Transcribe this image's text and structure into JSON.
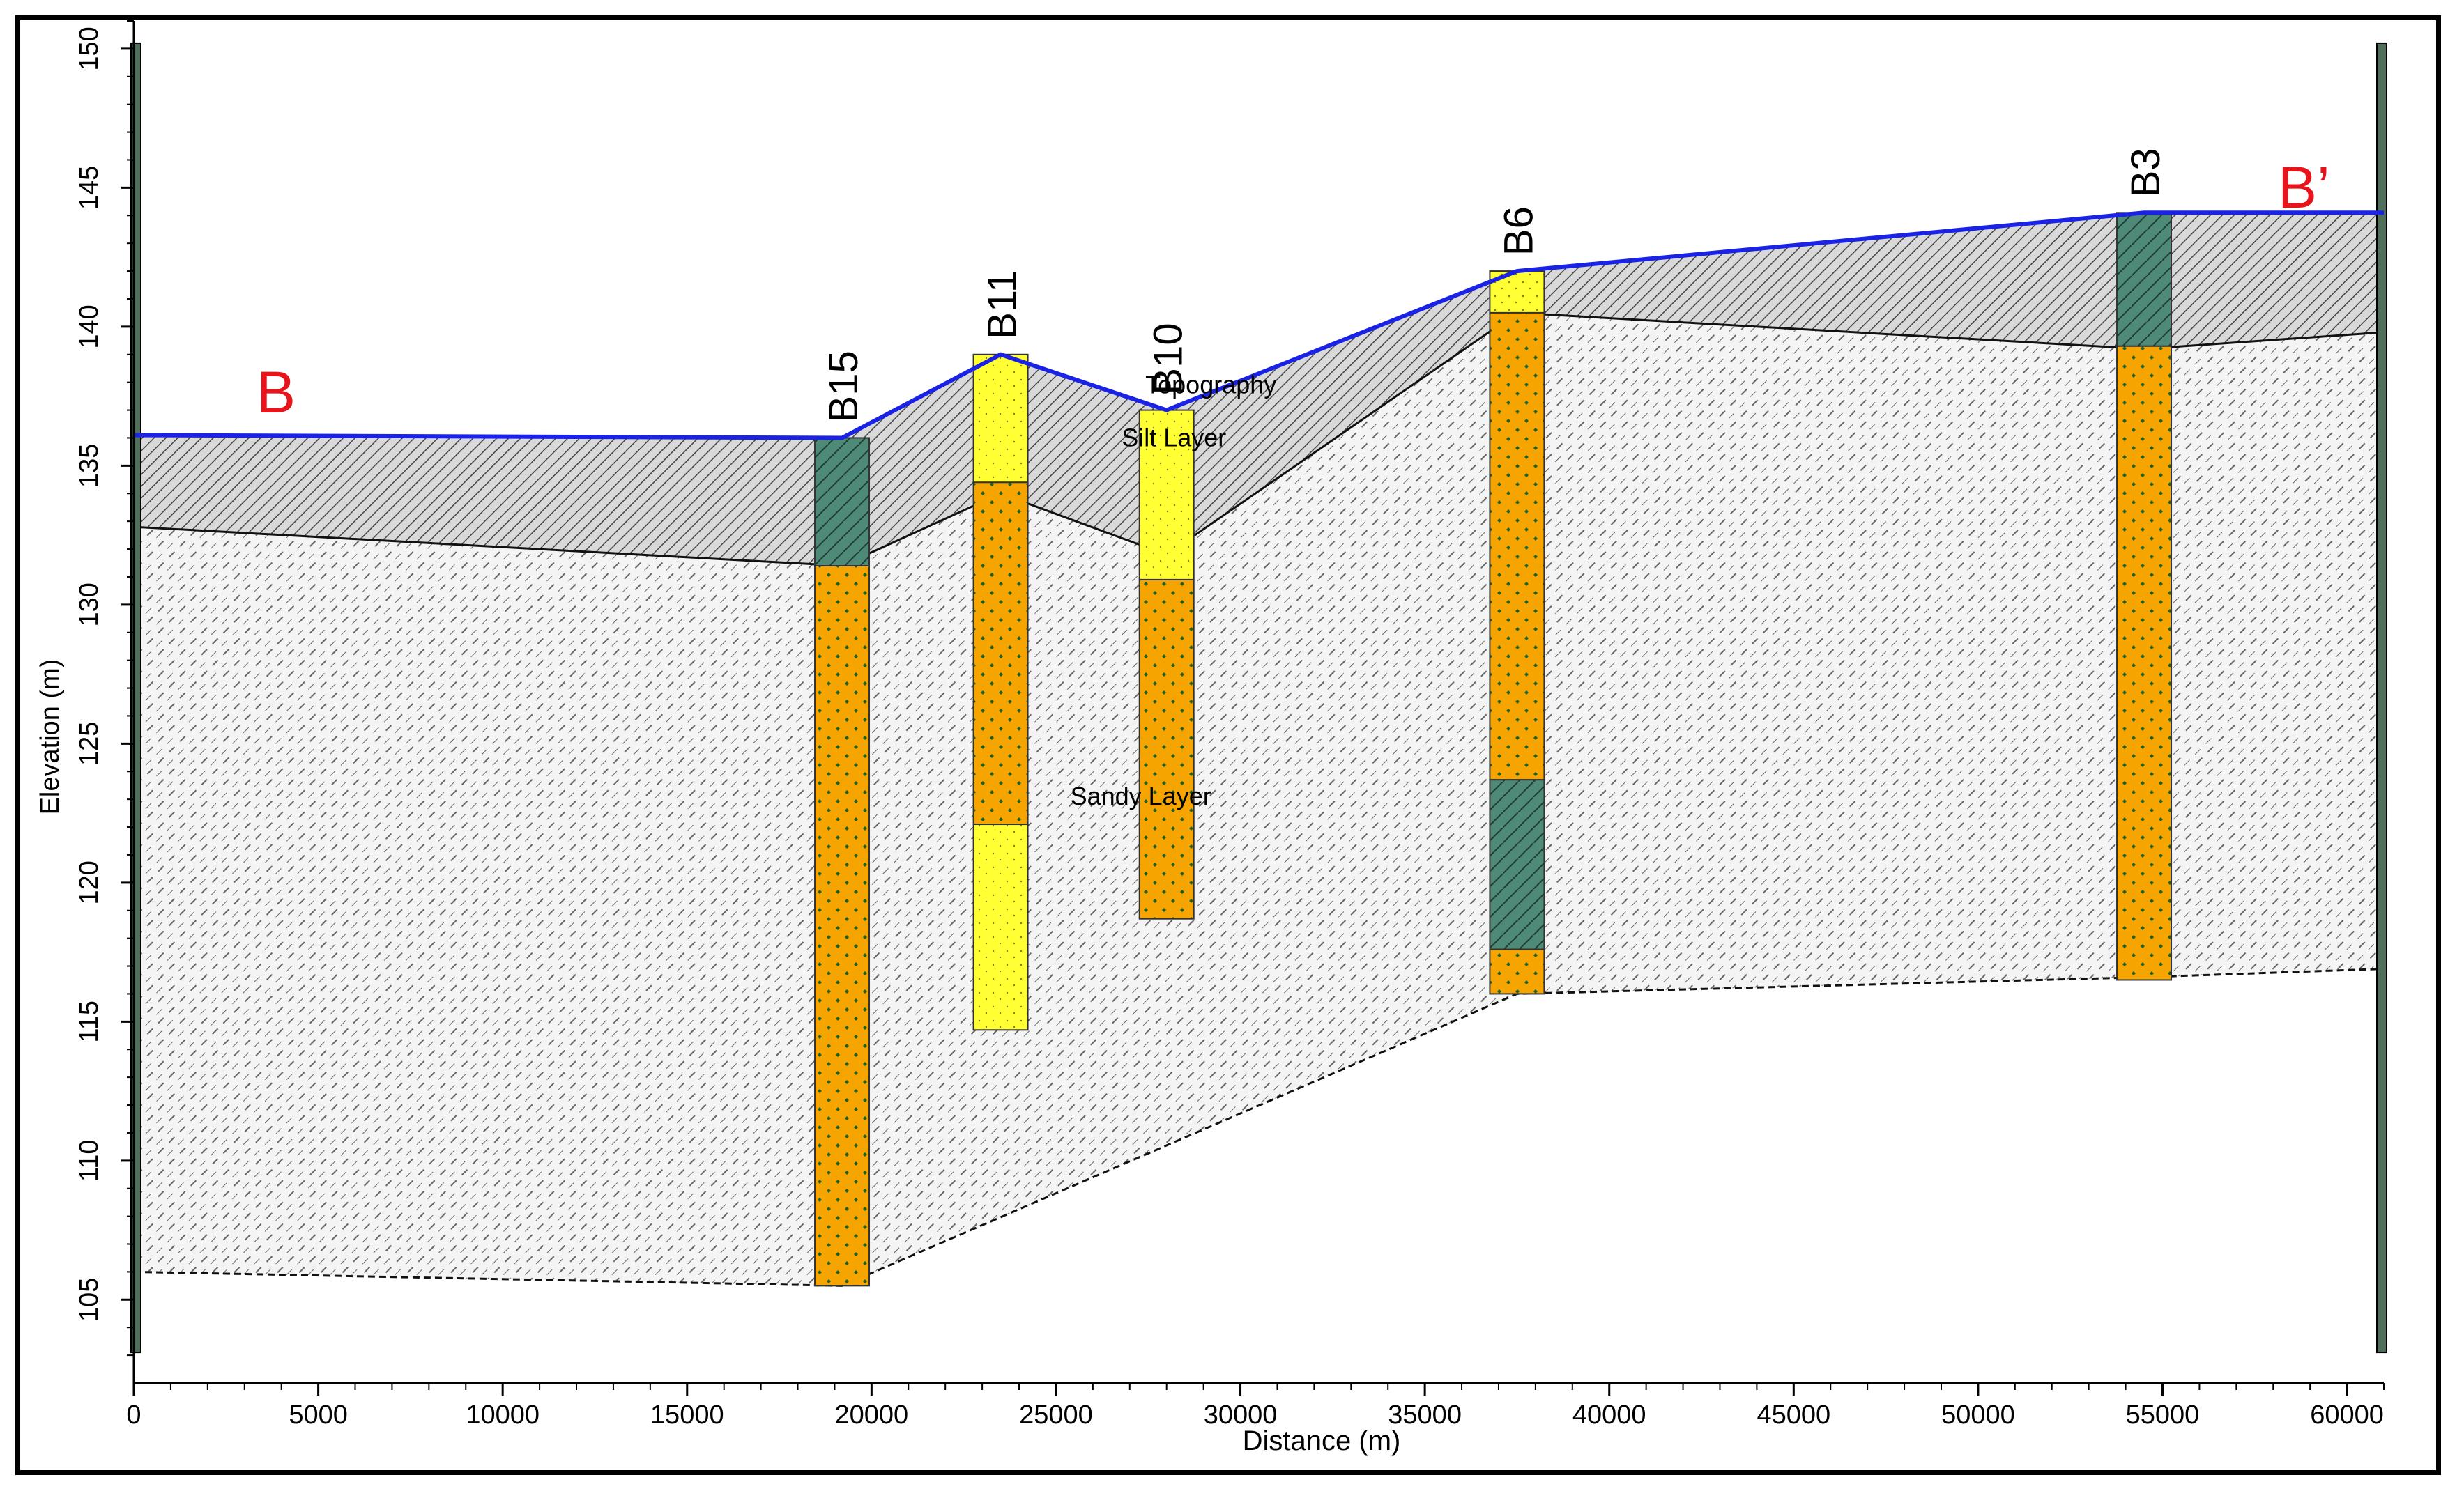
{
  "section": {
    "start_label": "B",
    "end_label": "B’",
    "label_color": "#e8141c"
  },
  "axes": {
    "xlabel": "Distance (m)",
    "ylabel": "Elevation (m)",
    "xlim": [
      0,
      61000
    ],
    "ylim": [
      102,
      151
    ],
    "xticks": [
      0,
      5000,
      10000,
      15000,
      20000,
      25000,
      30000,
      35000,
      40000,
      45000,
      50000,
      55000,
      60000
    ],
    "yticks": [
      105,
      110,
      115,
      120,
      125,
      130,
      135,
      140,
      145,
      150
    ]
  },
  "layer_labels": [
    {
      "text": "Topography",
      "x": 29200,
      "y": 137.6
    },
    {
      "text": "Silt Layer",
      "x": 28200,
      "y": 135.7
    },
    {
      "text": "Sandy Layer",
      "x": 27300,
      "y": 122.8
    }
  ],
  "colors": {
    "topography": "#1a22e6",
    "silt": "#4f8a78",
    "sand": "#f5a400",
    "sand_dots": "#1f5f2a",
    "gravel": "#ffff33",
    "silt_fill": "#d9d9d9",
    "sand_fill": "#f4f4f4",
    "boundary": "#111111",
    "end_bar": "#4f6f5a"
  },
  "chart_data": {
    "type": "cross-section",
    "topography": [
      [
        0,
        136.1
      ],
      [
        19200,
        136
      ],
      [
        23500,
        139
      ],
      [
        28000,
        137
      ],
      [
        37500,
        142
      ],
      [
        54500,
        144.1
      ],
      [
        61000,
        144.1
      ]
    ],
    "silt_base": [
      [
        0,
        132.8
      ],
      [
        19200,
        131.4
      ],
      [
        23500,
        134
      ],
      [
        28000,
        131.8
      ],
      [
        37500,
        140.5
      ],
      [
        54500,
        139.2
      ],
      [
        61000,
        139.8
      ]
    ],
    "sandy_base": [
      [
        0,
        106
      ],
      [
        19200,
        105.5
      ],
      [
        37500,
        116
      ],
      [
        54500,
        116.6
      ],
      [
        61000,
        116.9
      ]
    ],
    "boreholes": [
      {
        "name": "B15",
        "x": 19200,
        "top": 136,
        "intervals": [
          [
            136,
            131.4,
            "silt"
          ],
          [
            131.4,
            105.5,
            "sand"
          ]
        ]
      },
      {
        "name": "B11",
        "x": 23500,
        "top": 139,
        "intervals": [
          [
            139,
            134.4,
            "gravel"
          ],
          [
            134.4,
            122.1,
            "sand"
          ],
          [
            122.1,
            114.7,
            "gravel"
          ]
        ]
      },
      {
        "name": "B10",
        "x": 28000,
        "top": 137,
        "intervals": [
          [
            137,
            130.9,
            "gravel"
          ],
          [
            130.9,
            118.7,
            "sand"
          ]
        ]
      },
      {
        "name": "B6",
        "x": 37500,
        "top": 142,
        "intervals": [
          [
            142,
            140.5,
            "gravel"
          ],
          [
            140.5,
            123.7,
            "sand"
          ],
          [
            123.7,
            117.6,
            "silt"
          ],
          [
            117.6,
            116,
            "sand"
          ]
        ]
      },
      {
        "name": "B3",
        "x": 54500,
        "top": 144.1,
        "intervals": [
          [
            144.1,
            139.3,
            "silt"
          ],
          [
            139.3,
            116.5,
            "sand"
          ]
        ]
      }
    ]
  }
}
